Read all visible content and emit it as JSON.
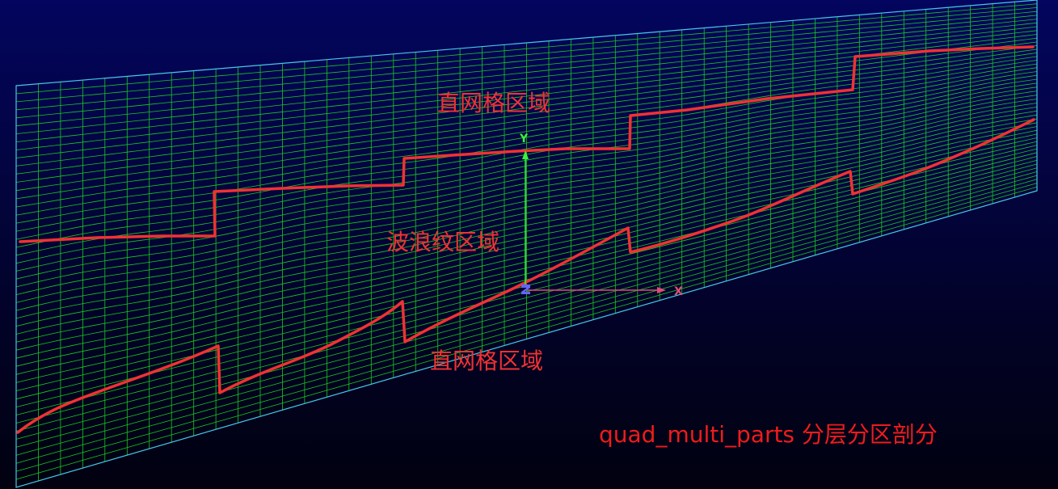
{
  "scene": {
    "background_top": "#03055e",
    "background_bottom": "#010110",
    "mesh_color": "#19c81e",
    "boundary_color": "#46c8e6",
    "curve_color": "#f03232",
    "mesh_columns": 46,
    "mesh_rows": 50
  },
  "region_labels": {
    "top": "直网格区域",
    "wave": "波浪纹区域",
    "bottom": "直网格区域",
    "color": "#f03232"
  },
  "axes": {
    "y_label": "Y",
    "x_label": "X",
    "z_label": "Z",
    "y_color": "#3cf03c",
    "x_color": "#e04a78",
    "z_color": "#6464ff"
  },
  "caption": {
    "text": "quad_multi_parts 分层分区剖分",
    "color": "#ee1c1c"
  }
}
